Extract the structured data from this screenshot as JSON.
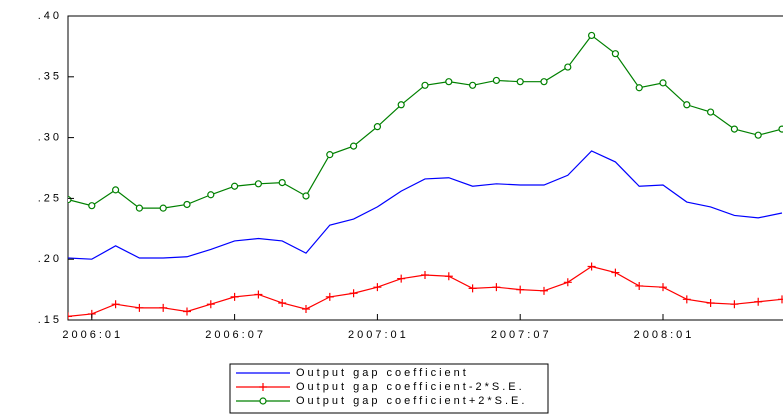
{
  "chart_data": {
    "type": "line",
    "categories": [
      null,
      "2006:01",
      null,
      null,
      null,
      null,
      null,
      "2006:07",
      null,
      null,
      null,
      null,
      null,
      "2007:01",
      null,
      null,
      null,
      null,
      null,
      "2007:07",
      null,
      null,
      null,
      null,
      null,
      "2008:01",
      null,
      null,
      null,
      null,
      null
    ],
    "series": [
      {
        "name": "Output gap coefficient",
        "color": "#0000ff",
        "marker": "none",
        "values": [
          0.201,
          0.2,
          0.211,
          0.201,
          0.201,
          0.202,
          0.208,
          0.215,
          0.217,
          0.215,
          0.205,
          0.228,
          0.233,
          0.243,
          0.256,
          0.266,
          0.267,
          0.26,
          0.262,
          0.261,
          0.261,
          0.269,
          0.289,
          0.28,
          0.26,
          0.261,
          0.247,
          0.243,
          0.236,
          0.234,
          0.238
        ]
      },
      {
        "name": "Output gap coefficient-2*S.E.",
        "color": "#ff0000",
        "marker": "plus",
        "values": [
          0.153,
          0.155,
          0.163,
          0.16,
          0.16,
          0.157,
          0.163,
          0.169,
          0.171,
          0.164,
          0.159,
          0.169,
          0.172,
          0.177,
          0.184,
          0.187,
          0.186,
          0.176,
          0.177,
          0.175,
          0.174,
          0.181,
          0.194,
          0.189,
          0.178,
          0.177,
          0.167,
          0.164,
          0.163,
          0.165,
          0.167
        ]
      },
      {
        "name": "Output gap coefficient+2*S.E.",
        "color": "#008000",
        "marker": "circle",
        "values": [
          0.249,
          0.244,
          0.257,
          0.242,
          0.242,
          0.245,
          0.253,
          0.26,
          0.262,
          0.263,
          0.252,
          0.286,
          0.293,
          0.309,
          0.327,
          0.343,
          0.346,
          0.343,
          0.347,
          0.346,
          0.346,
          0.358,
          0.384,
          0.369,
          0.341,
          0.345,
          0.327,
          0.321,
          0.307,
          0.302,
          0.307
        ]
      }
    ],
    "ylim": [
      0.15,
      0.4
    ],
    "yticks": [
      {
        "value": 0.15,
        "label": ".15"
      },
      {
        "value": 0.2,
        "label": ".20"
      },
      {
        "value": 0.25,
        "label": ".25"
      },
      {
        "value": 0.3,
        "label": ".30"
      },
      {
        "value": 0.35,
        "label": ".35"
      },
      {
        "value": 0.4,
        "label": ".40"
      }
    ]
  }
}
